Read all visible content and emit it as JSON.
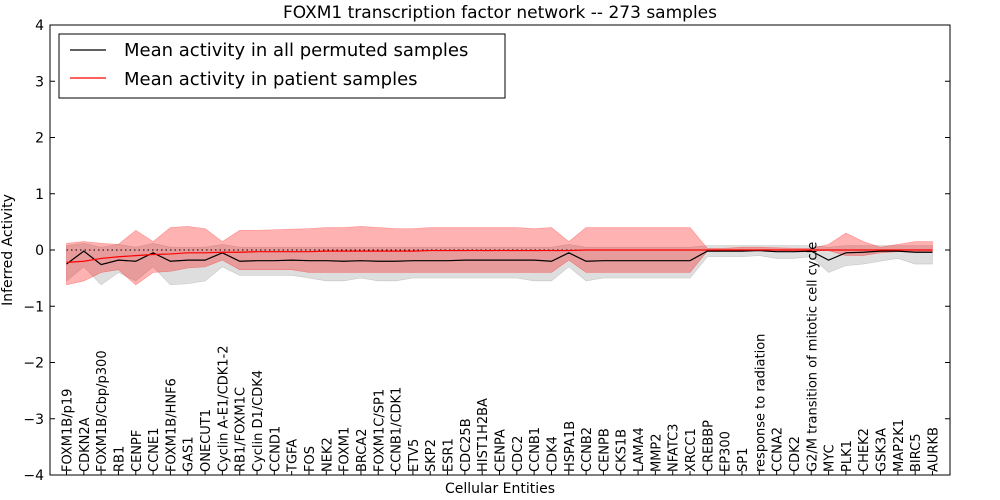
{
  "chart_data": {
    "type": "line",
    "title": "FOXM1 transcription factor network -- 273 samples",
    "xlabel": "Cellular Entities",
    "ylabel": "Inferred Activity",
    "ylim": [
      -4,
      4
    ],
    "yticks": [
      4,
      3,
      2,
      1,
      0,
      -1,
      -2,
      -3,
      -4
    ],
    "yticklabels": [
      "4",
      "3",
      "2",
      "1",
      "0",
      "−1",
      "−2",
      "−3",
      "−4"
    ],
    "reference_line": 0,
    "legend_position": "top-left",
    "categories": [
      "FOXM1B/p19",
      "CDKN2A",
      "FOXM1B/Cbp/p300",
      "RB1",
      "CENPF",
      "CCNE1",
      "FOXM1B/HNF6",
      "GAS1",
      "ONECUT1",
      "Cyclin A-E1/CDK1-2",
      "RB1/FOXM1C",
      "Cyclin D1/CDK4",
      "CCND1",
      "TGFA",
      "FOS",
      "NEK2",
      "FOXM1",
      "BRCA2",
      "FOXM1C/SP1",
      "CCNB1/CDK1",
      "ETV5",
      "SKP2",
      "ESR1",
      "CDC25B",
      "HIST1H2BA",
      "CENPA",
      "CDC2",
      "CCNB1",
      "CDK4",
      "HSPA1B",
      "CCNB2",
      "CENPB",
      "CKS1B",
      "LAMA4",
      "MMP2",
      "NFATC3",
      "XRCC1",
      "CREBBP",
      "EP300",
      "SP1",
      "response to radiation",
      "CCNA2",
      "CDK2",
      "G2/M transition of mitotic cell cycle",
      "MYC",
      "PLK1",
      "CHEK2",
      "GSK3A",
      "MAP2K1",
      "BIRC5",
      "AURKB"
    ],
    "series": [
      {
        "name": "Mean activity in all permuted samples",
        "color": "#000000",
        "values": [
          -0.25,
          -0.02,
          -0.26,
          -0.18,
          -0.2,
          -0.05,
          -0.2,
          -0.18,
          -0.18,
          -0.05,
          -0.2,
          -0.19,
          -0.19,
          -0.18,
          -0.19,
          -0.19,
          -0.2,
          -0.19,
          -0.2,
          -0.2,
          -0.19,
          -0.19,
          -0.19,
          -0.18,
          -0.18,
          -0.18,
          -0.18,
          -0.18,
          -0.2,
          -0.05,
          -0.2,
          -0.19,
          -0.19,
          -0.19,
          -0.19,
          -0.19,
          -0.19,
          -0.02,
          -0.02,
          -0.02,
          -0.01,
          -0.03,
          -0.03,
          -0.02,
          -0.18,
          -0.05,
          -0.04,
          -0.02,
          -0.02,
          -0.04,
          -0.04
        ],
        "band_low": [
          -0.55,
          -0.3,
          -0.62,
          -0.4,
          -0.55,
          -0.3,
          -0.62,
          -0.6,
          -0.55,
          -0.3,
          -0.45,
          -0.45,
          -0.45,
          -0.45,
          -0.5,
          -0.55,
          -0.55,
          -0.5,
          -0.55,
          -0.55,
          -0.5,
          -0.5,
          -0.5,
          -0.5,
          -0.5,
          -0.5,
          -0.5,
          -0.55,
          -0.55,
          -0.3,
          -0.55,
          -0.5,
          -0.5,
          -0.5,
          -0.5,
          -0.5,
          -0.5,
          -0.12,
          -0.12,
          -0.12,
          -0.1,
          -0.15,
          -0.15,
          -0.12,
          -0.4,
          -0.28,
          -0.25,
          -0.2,
          -0.15,
          -0.25,
          -0.25
        ],
        "band_high": [
          0.08,
          0.12,
          0.05,
          0.1,
          0.05,
          0.12,
          0.05,
          0.05,
          0.05,
          0.1,
          0.05,
          0.05,
          0.05,
          0.05,
          0.05,
          0.05,
          0.05,
          0.05,
          0.05,
          0.05,
          0.05,
          0.05,
          0.05,
          0.05,
          0.05,
          0.05,
          0.05,
          0.05,
          0.05,
          0.1,
          0.05,
          0.05,
          0.05,
          0.05,
          0.05,
          0.05,
          0.05,
          0.08,
          0.08,
          0.08,
          0.08,
          0.08,
          0.08,
          0.08,
          0.05,
          0.08,
          0.08,
          0.08,
          0.08,
          0.08,
          0.08
        ]
      },
      {
        "name": "Mean activity in patient samples",
        "color": "#ff0000",
        "values": [
          -0.22,
          -0.2,
          -0.15,
          -0.12,
          -0.1,
          -0.08,
          -0.07,
          -0.05,
          -0.05,
          -0.04,
          -0.04,
          -0.03,
          -0.03,
          -0.03,
          -0.03,
          -0.02,
          -0.02,
          -0.02,
          -0.02,
          -0.02,
          -0.02,
          -0.01,
          -0.01,
          -0.01,
          -0.01,
          -0.01,
          -0.01,
          -0.01,
          -0.01,
          -0.01,
          0,
          0,
          0,
          0,
          0,
          0,
          0,
          0,
          0,
          0,
          0,
          0,
          0,
          0,
          0,
          0,
          0,
          0,
          0,
          0,
          0
        ],
        "band_low": [
          -0.62,
          -0.55,
          -0.4,
          -0.35,
          -0.62,
          -0.4,
          -0.38,
          -0.32,
          -0.3,
          -0.18,
          -0.35,
          -0.35,
          -0.35,
          -0.35,
          -0.4,
          -0.4,
          -0.4,
          -0.4,
          -0.4,
          -0.4,
          -0.4,
          -0.4,
          -0.4,
          -0.4,
          -0.4,
          -0.4,
          -0.4,
          -0.4,
          -0.4,
          -0.18,
          -0.4,
          -0.4,
          -0.4,
          -0.4,
          -0.4,
          -0.4,
          -0.4,
          -0.02,
          -0.02,
          -0.01,
          0,
          -0.01,
          -0.02,
          -0.02,
          -0.01,
          -0.1,
          -0.1,
          -0.05,
          -0.03,
          -0.03,
          -0.03
        ],
        "band_high": [
          0.12,
          0.15,
          0.12,
          0.1,
          0.35,
          0.15,
          0.4,
          0.42,
          0.38,
          0.15,
          0.35,
          0.35,
          0.36,
          0.37,
          0.38,
          0.4,
          0.4,
          0.42,
          0.4,
          0.38,
          0.38,
          0.4,
          0.4,
          0.4,
          0.4,
          0.4,
          0.4,
          0.38,
          0.4,
          0.15,
          0.4,
          0.4,
          0.4,
          0.4,
          0.4,
          0.4,
          0.4,
          0.03,
          0.03,
          0.05,
          0.05,
          0.04,
          0.03,
          0.03,
          0.1,
          0.3,
          0.15,
          0.05,
          0.1,
          0.15,
          0.15
        ]
      }
    ]
  }
}
